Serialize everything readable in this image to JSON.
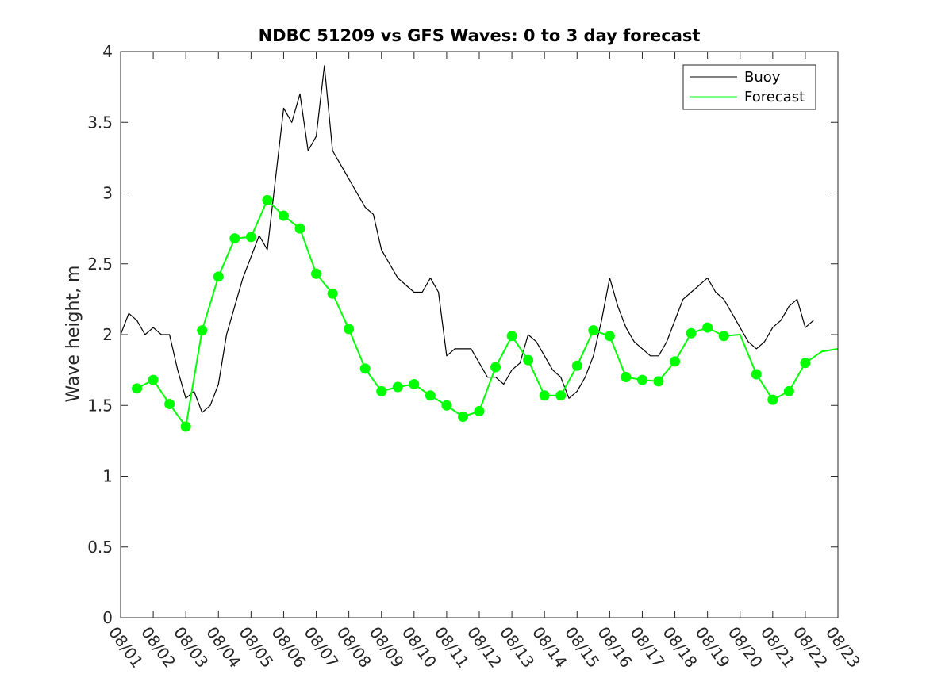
{
  "chart_data": {
    "type": "line",
    "title": "NDBC 51209 vs GFS Waves: 0 to 3 day forecast",
    "xlabel": "",
    "ylabel": "Wave height, m",
    "xlim": [
      0,
      22
    ],
    "ylim": [
      0,
      4
    ],
    "yticks": [
      0,
      0.5,
      1,
      1.5,
      2,
      2.5,
      3,
      3.5,
      4
    ],
    "ytick_labels": [
      "0",
      "0.5",
      "1",
      "1.5",
      "2",
      "2.5",
      "3",
      "3.5",
      "4"
    ],
    "xtick_labels": [
      "08/01",
      "08/02",
      "08/03",
      "08/04",
      "08/05",
      "08/06",
      "08/07",
      "08/08",
      "08/09",
      "08/10",
      "08/11",
      "08/12",
      "08/13",
      "08/14",
      "08/15",
      "08/16",
      "08/17",
      "08/18",
      "08/19",
      "08/20",
      "08/21",
      "08/22",
      "08/23"
    ],
    "legend": {
      "position": "top-right",
      "entries": [
        {
          "name": "Buoy",
          "color": "#000000"
        },
        {
          "name": "Forecast",
          "color": "#00ff00"
        }
      ]
    },
    "series": [
      {
        "name": "Buoy",
        "color": "#000000",
        "x": [
          0,
          0.25,
          0.5,
          0.75,
          1,
          1.25,
          1.5,
          1.75,
          2,
          2.25,
          2.5,
          2.75,
          3,
          3.25,
          3.5,
          3.75,
          4,
          4.25,
          4.5,
          4.75,
          5,
          5.25,
          5.5,
          5.75,
          6,
          6.25,
          6.5,
          6.75,
          7,
          7.25,
          7.5,
          7.75,
          8,
          8.25,
          8.5,
          8.75,
          9,
          9.25,
          9.5,
          9.75,
          10,
          10.25,
          10.5,
          10.75,
          11,
          11.25,
          11.5,
          11.75,
          12,
          12.25,
          12.5,
          12.75,
          13,
          13.25,
          13.5,
          13.75,
          14,
          14.25,
          14.5,
          14.75,
          15,
          15.25,
          15.5,
          15.75,
          16,
          16.25,
          16.5,
          16.75,
          17,
          17.25,
          17.5,
          17.75,
          18,
          18.25,
          18.5,
          18.75,
          19,
          19.25,
          19.5,
          19.75,
          20,
          20.25,
          20.5,
          20.75,
          21,
          21.25
        ],
        "y": [
          2.0,
          2.15,
          2.1,
          2.0,
          2.05,
          2.0,
          2.0,
          1.75,
          1.55,
          1.6,
          1.45,
          1.5,
          1.65,
          2.0,
          2.2,
          2.4,
          2.55,
          2.7,
          2.6,
          3.1,
          3.6,
          3.5,
          3.7,
          3.3,
          3.4,
          3.9,
          3.3,
          3.2,
          3.1,
          3.0,
          2.9,
          2.85,
          2.6,
          2.5,
          2.4,
          2.35,
          2.3,
          2.3,
          2.4,
          2.3,
          1.85,
          1.9,
          1.9,
          1.9,
          1.8,
          1.7,
          1.7,
          1.65,
          1.75,
          1.8,
          2.0,
          1.95,
          1.85,
          1.75,
          1.7,
          1.55,
          1.6,
          1.7,
          1.85,
          2.1,
          2.4,
          2.2,
          2.05,
          1.95,
          1.9,
          1.85,
          1.85,
          1.95,
          2.1,
          2.25,
          2.3,
          2.35,
          2.4,
          2.3,
          2.25,
          2.15,
          2.05,
          1.95,
          1.9,
          1.95,
          2.05,
          2.1,
          2.2,
          2.25,
          2.05,
          2.1
        ]
      },
      {
        "name": "Forecast",
        "color": "#00ff00",
        "x": [
          0.5,
          1,
          1.5,
          2,
          2.5,
          3,
          3.5,
          4,
          4.5,
          5,
          5.5,
          6,
          6.5,
          7,
          7.5,
          8,
          8.5,
          9,
          9.5,
          10,
          10.5,
          11,
          11.5,
          12,
          12.5,
          13,
          13.5,
          14,
          14.5,
          15,
          15.5,
          16,
          16.5,
          17,
          17.5,
          18,
          18.5,
          19,
          19.5,
          20,
          20.5,
          21,
          21.5,
          22
        ],
        "y": [
          1.62,
          1.68,
          1.51,
          1.35,
          2.03,
          2.41,
          2.68,
          2.69,
          2.95,
          2.84,
          2.75,
          2.43,
          2.29,
          2.04,
          1.76,
          1.6,
          1.63,
          1.65,
          1.57,
          1.5,
          1.42,
          1.46,
          1.77,
          1.99,
          1.82,
          1.57,
          1.57,
          1.78,
          2.03,
          1.99,
          1.7,
          1.68,
          1.67,
          1.81,
          2.01,
          2.05,
          1.99,
          2.0,
          1.72,
          1.54,
          1.6,
          1.8,
          1.88,
          1.9
        ],
        "markers_x": [
          0.5,
          1,
          1.5,
          2,
          2.5,
          3,
          3.5,
          4,
          4.5,
          5,
          5.5,
          6,
          6.5,
          7,
          7.5,
          8,
          8.5,
          9,
          9.5,
          10,
          10.5,
          11,
          11.5,
          12,
          12.5,
          13,
          13.5,
          14,
          14.5,
          15,
          15.5,
          16,
          16.5,
          17,
          17.5,
          18,
          18.5,
          19.5,
          20,
          20.5,
          21
        ],
        "markers_y": [
          1.62,
          1.68,
          1.51,
          1.35,
          2.03,
          2.41,
          2.68,
          2.69,
          2.95,
          2.84,
          2.75,
          2.43,
          2.29,
          2.04,
          1.76,
          1.6,
          1.63,
          1.65,
          1.57,
          1.5,
          1.42,
          1.46,
          1.77,
          1.99,
          1.82,
          1.57,
          1.57,
          1.78,
          2.03,
          1.99,
          1.7,
          1.68,
          1.67,
          1.81,
          2.01,
          2.05,
          1.99,
          1.72,
          1.54,
          1.6,
          1.8
        ]
      }
    ]
  }
}
